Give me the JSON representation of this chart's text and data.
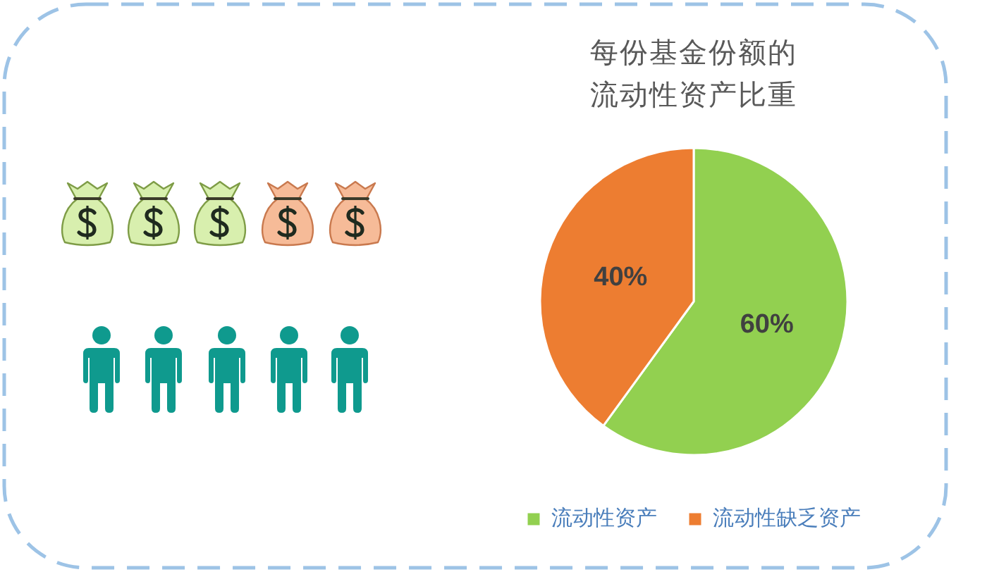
{
  "chart_data": {
    "type": "pie",
    "title": "每份基金份额的流动性资产比重",
    "categories": [
      "流动性资产",
      "流动性缺乏资产"
    ],
    "values": [
      60,
      40
    ],
    "colors": [
      "#92d050",
      "#ed7d31"
    ],
    "value_labels": [
      "60%",
      "40%"
    ],
    "legend": "bottom"
  }
}
